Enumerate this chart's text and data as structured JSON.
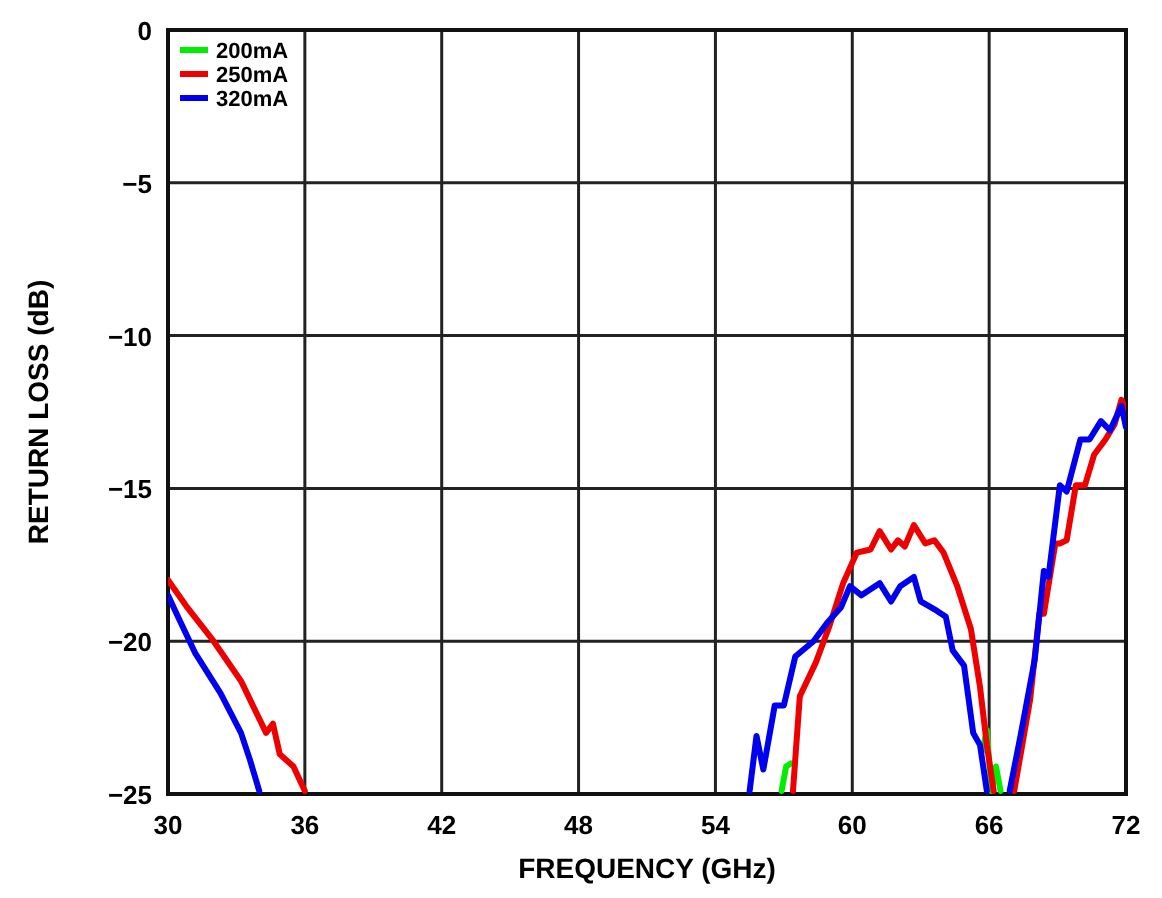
{
  "chart_data": {
    "type": "line",
    "xlabel": "FREQUENCY (GHz)",
    "ylabel": "RETURN LOSS (dB)",
    "xlim": [
      30,
      72
    ],
    "ylim": [
      -25,
      0
    ],
    "xticks": [
      30,
      36,
      42,
      48,
      54,
      60,
      66,
      72
    ],
    "yticks": [
      {
        "value": -25,
        "label": "−25"
      },
      {
        "value": -20,
        "label": "−20"
      },
      {
        "value": -15,
        "label": "−15"
      },
      {
        "value": -10,
        "label": "−10"
      },
      {
        "value": -5,
        "label": "−5"
      },
      0
    ],
    "grid": true,
    "legend": "top left",
    "line_style": "solid",
    "marker": "none",
    "series": [
      {
        "name": "200mA",
        "color": "#00ee00",
        "x": [
          56.9,
          57.1,
          57.3,
          null,
          65.7,
          65.9,
          66.1,
          66.3,
          66.5
        ],
        "values": [
          -24.9,
          -24.1,
          -24.0,
          null,
          -23.6,
          -22.9,
          -24.9,
          -24.1,
          -24.9
        ]
      },
      {
        "name": "250mA",
        "color": "#ee0000",
        "x": [
          30,
          30.8,
          32,
          33.2,
          34.3,
          34.6,
          34.9,
          35.5,
          36,
          null,
          57.4,
          57.7,
          58.4,
          59,
          59.6,
          60.2,
          60.8,
          61.2,
          61.7,
          62,
          62.3,
          62.7,
          63.2,
          63.6,
          64,
          64.6,
          65.2,
          65.6,
          65.9,
          66.2,
          null,
          67.1,
          67.8,
          68.2,
          68.4,
          68.9,
          69.1,
          69.4,
          69.8,
          70.2,
          70.6,
          71.1,
          71.5,
          71.8,
          72
        ],
        "values": [
          -18,
          -18.85,
          -20,
          -21.3,
          -23,
          -22.7,
          -23.7,
          -24.1,
          -24.9,
          null,
          -24.9,
          -21.8,
          -20.7,
          -19.5,
          -18.1,
          -17.1,
          -17,
          -16.4,
          -17,
          -16.7,
          -16.9,
          -16.2,
          -16.8,
          -16.7,
          -17.1,
          -18.2,
          -19.6,
          -21.5,
          -23.4,
          -24.9,
          null,
          -24.9,
          -21.9,
          -19.1,
          -19.1,
          -16.8,
          -16.8,
          -16.7,
          -14.9,
          -14.9,
          -13.9,
          -13.4,
          -12.9,
          -12.1,
          -12.4
        ]
      },
      {
        "name": "320mA",
        "color": "#0000ee",
        "x": [
          30,
          30.5,
          31.2,
          32.3,
          33.2,
          33.6,
          34,
          null,
          55.5,
          55.8,
          56.1,
          56.6,
          57,
          57.5,
          58.3,
          58.9,
          59.5,
          59.9,
          60.4,
          61.2,
          61.7,
          62.1,
          62.7,
          63,
          63.7,
          64.1,
          64.4,
          64.9,
          65.3,
          65.6,
          65.9,
          null,
          66.9,
          67.4,
          68,
          68.4,
          68.6,
          69.1,
          69.4,
          70,
          70.4,
          70.9,
          71.3,
          71.8,
          72
        ],
        "values": [
          -18.5,
          -19.3,
          -20.4,
          -21.7,
          -23,
          -23.9,
          -24.9,
          null,
          -24.9,
          -23.1,
          -24.2,
          -22.1,
          -22.1,
          -20.5,
          -20,
          -19.4,
          -18.9,
          -18.2,
          -18.5,
          -18.1,
          -18.7,
          -18.2,
          -17.9,
          -18.7,
          -19,
          -19.2,
          -20.3,
          -20.8,
          -23,
          -23.4,
          -24.9,
          null,
          -24.9,
          -23,
          -20.6,
          -17.7,
          -17.9,
          -14.9,
          -15.1,
          -13.4,
          -13.4,
          -12.8,
          -13.1,
          -12.3,
          -13
        ]
      }
    ]
  }
}
